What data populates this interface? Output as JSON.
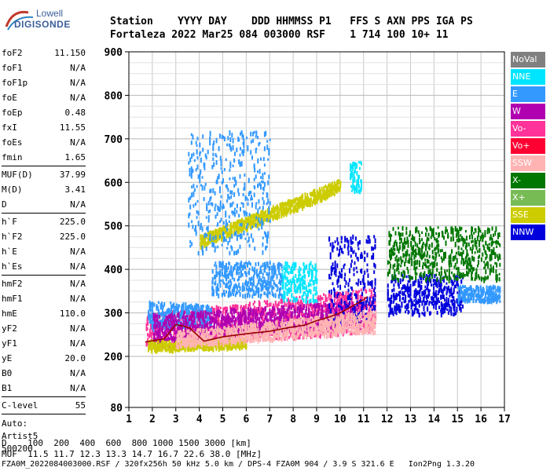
{
  "logo": {
    "top": "Lowell",
    "bottom": "DIGISONDE"
  },
  "header": {
    "line1": "Station    YYYY DAY    DDD HHMMSS P1   FFS S AXN PPS IGA PS",
    "line2": "Fortaleza 2022 Mar25 084 003000 RSF    1 714 100 10+ 11"
  },
  "params": {
    "group1": [
      {
        "name": "foF2",
        "value": "11.150"
      },
      {
        "name": "foF1",
        "value": "N/A"
      },
      {
        "name": "foF1p",
        "value": "N/A"
      },
      {
        "name": "foE",
        "value": "N/A"
      },
      {
        "name": "foEp",
        "value": "0.48"
      },
      {
        "name": "fxI",
        "value": "11.55"
      },
      {
        "name": "foEs",
        "value": "N/A"
      },
      {
        "name": "fmin",
        "value": "1.65"
      }
    ],
    "group2": [
      {
        "name": "MUF(D)",
        "value": "37.99"
      },
      {
        "name": "M(D)",
        "value": "3.41"
      },
      {
        "name": "D",
        "value": "N/A"
      }
    ],
    "group3": [
      {
        "name": "h`F",
        "value": "225.0"
      },
      {
        "name": "h`F2",
        "value": "225.0"
      },
      {
        "name": "h`E",
        "value": "N/A"
      },
      {
        "name": "h`Es",
        "value": "N/A"
      }
    ],
    "group4": [
      {
        "name": "hmF2",
        "value": "N/A"
      },
      {
        "name": "hmF1",
        "value": "N/A"
      },
      {
        "name": "hmE",
        "value": "110.0"
      },
      {
        "name": "yF2",
        "value": "N/A"
      },
      {
        "name": "yF1",
        "value": "N/A"
      },
      {
        "name": "yE",
        "value": "20.0"
      },
      {
        "name": "B0",
        "value": "N/A"
      },
      {
        "name": "B1",
        "value": "N/A"
      }
    ],
    "group5": [
      {
        "name": "C-level",
        "value": "55"
      }
    ],
    "auto": [
      "Auto:",
      "Artist5",
      "500200"
    ]
  },
  "legend": [
    {
      "label": "NoVal",
      "color": "#808080"
    },
    {
      "label": "NNE",
      "color": "#00e5ff"
    },
    {
      "label": "E",
      "color": "#3399ff"
    },
    {
      "label": "W",
      "color": "#b000b0"
    },
    {
      "label": "Vo-",
      "color": "#ff3399"
    },
    {
      "label": "Vo+",
      "color": "#ff0033"
    },
    {
      "label": "SSW",
      "color": "#ffb3b3"
    },
    {
      "label": "X-",
      "color": "#007700"
    },
    {
      "label": "X+",
      "color": "#77bb55"
    },
    {
      "label": "SSE",
      "color": "#cccc00"
    },
    {
      "label": "NNW",
      "color": "#0000dd"
    }
  ],
  "footer": {
    "line1": "D    100  200  400  600  800 1000 1500 3000 [km]",
    "line2": "MUF  11.5 11.7 12.3 13.3 14.7 16.7 22.6 38.0 [MHz]",
    "line3": "FZA0M_2022084003000.RSF / 320fx256h 50 kHz 5.0 km / DPS-4 FZA0M 904 / 3.9 S 321.6 E   Ion2Png 1.3.20"
  },
  "chart_data": {
    "type": "scatter",
    "xlim": [
      1,
      17
    ],
    "ylim": [
      80,
      900
    ],
    "xticks": [
      1,
      2,
      3,
      4,
      5,
      6,
      7,
      8,
      9,
      10,
      11,
      12,
      13,
      14,
      15,
      16,
      17
    ],
    "yticks": [
      80,
      200,
      300,
      400,
      500,
      600,
      700,
      800,
      900
    ],
    "grid": true,
    "legend_position": "right",
    "trace": {
      "name": "",
      "color": "#990000",
      "x": [
        1.7,
        2.0,
        2.5,
        3.0,
        3.3,
        3.6,
        3.9,
        4.2,
        5.0,
        6.0,
        7.0,
        8.0,
        8.5,
        9.0,
        9.5,
        10.0,
        10.5,
        11.0,
        11.15
      ],
      "y": [
        233,
        236,
        240,
        273,
        270,
        265,
        250,
        235,
        245,
        252,
        258,
        268,
        272,
        282,
        290,
        300,
        315,
        330,
        337
      ]
    },
    "bands": [
      {
        "legend": "Vo-",
        "x_from": 1.7,
        "x_to": 11.5,
        "y_lo_start": 220,
        "y_lo_end": 260,
        "y_hi_start": 300,
        "y_hi_end": 360
      },
      {
        "legend": "E",
        "x_from": 1.8,
        "x_to": 4.5,
        "y_lo_start": 265,
        "y_lo_end": 275,
        "y_hi_start": 330,
        "y_hi_end": 320
      },
      {
        "legend": "E",
        "x_from": 4.5,
        "x_to": 7.5,
        "y_lo_start": 345,
        "y_lo_end": 340,
        "y_hi_start": 420,
        "y_hi_end": 420
      },
      {
        "legend": "NNE",
        "x_from": 7.5,
        "x_to": 9.0,
        "y_lo_start": 330,
        "y_lo_end": 330,
        "y_hi_start": 420,
        "y_hi_end": 420
      },
      {
        "legend": "SSE",
        "x_from": 1.8,
        "x_to": 6.0,
        "y_lo_start": 215,
        "y_lo_end": 225,
        "y_hi_start": 240,
        "y_hi_end": 245
      },
      {
        "legend": "W",
        "x_from": 2.0,
        "x_to": 11.0,
        "y_lo_start": 240,
        "y_lo_end": 270,
        "y_hi_start": 300,
        "y_hi_end": 330
      },
      {
        "legend": "NNW",
        "x_from": 9.5,
        "x_to": 11.5,
        "y_lo_start": 280,
        "y_lo_end": 280,
        "y_hi_start": 480,
        "y_hi_end": 480
      },
      {
        "legend": "NNW",
        "x_from": 12.0,
        "x_to": 15.2,
        "y_lo_start": 300,
        "y_lo_end": 300,
        "y_hi_start": 390,
        "y_hi_end": 390
      },
      {
        "legend": "E",
        "x_from": 15.0,
        "x_to": 16.8,
        "y_lo_start": 330,
        "y_lo_end": 330,
        "y_hi_start": 365,
        "y_hi_end": 365
      },
      {
        "legend": "X-",
        "x_from": 12.0,
        "x_to": 16.8,
        "y_lo_start": 380,
        "y_lo_end": 380,
        "y_hi_start": 500,
        "y_hi_end": 500
      },
      {
        "legend": "SSE",
        "x_from": 4.0,
        "x_to": 10.0,
        "y_lo_start": 455,
        "y_lo_end": 580,
        "y_hi_start": 480,
        "y_hi_end": 610
      },
      {
        "legend": "NNE",
        "x_from": 10.4,
        "x_to": 10.9,
        "y_lo_start": 580,
        "y_lo_end": 580,
        "y_hi_start": 650,
        "y_hi_end": 650
      },
      {
        "legend": "E",
        "x_from": 3.5,
        "x_to": 7.0,
        "y_lo_start": 440,
        "y_lo_end": 440,
        "y_hi_start": 720,
        "y_hi_end": 720
      },
      {
        "legend": "SSW",
        "x_from": 3.0,
        "x_to": 11.5,
        "y_lo_start": 225,
        "y_lo_end": 260,
        "y_hi_start": 260,
        "y_hi_end": 310
      }
    ]
  }
}
